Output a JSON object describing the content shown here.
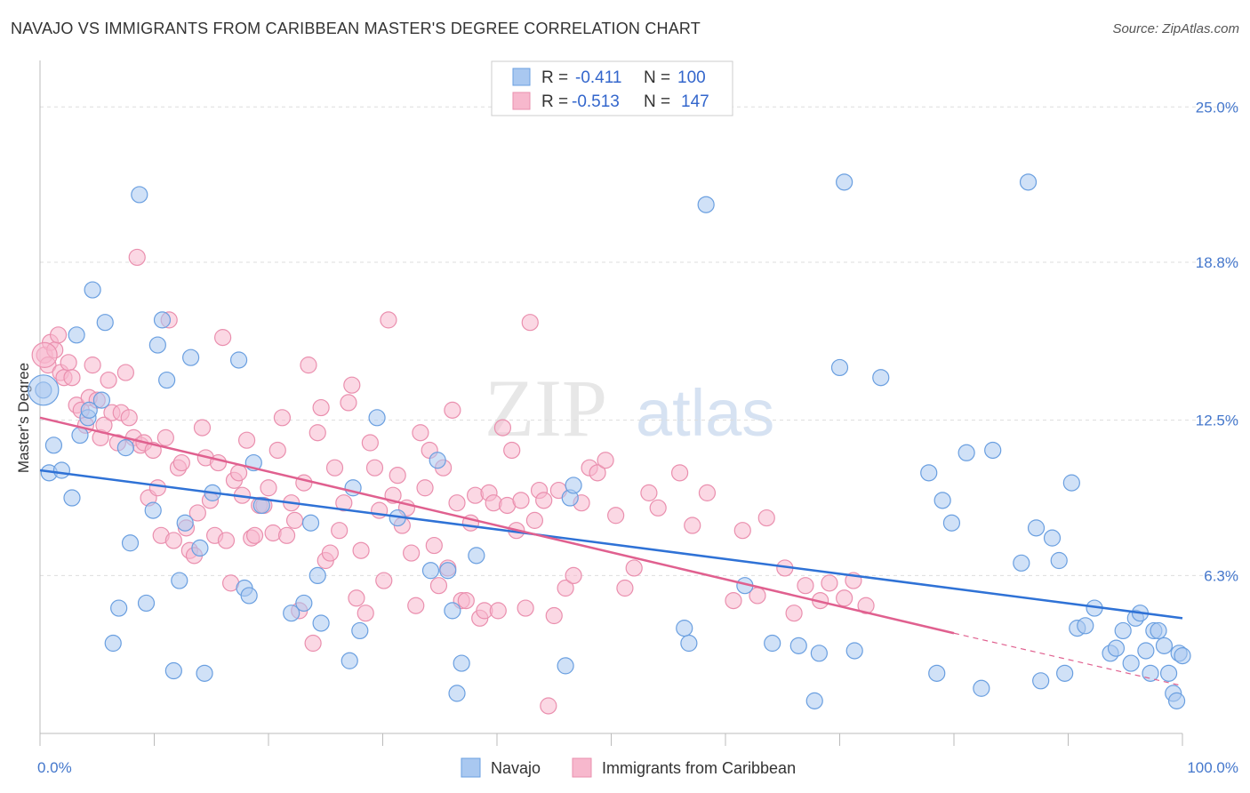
{
  "title": "NAVAJO VS IMMIGRANTS FROM CARIBBEAN MASTER'S DEGREE CORRELATION CHART",
  "source": "Source: ZipAtlas.com",
  "watermark": {
    "zip": "ZIP",
    "atlas": "atlas"
  },
  "colors": {
    "navajo_fill": "#a9c8f0",
    "navajo_stroke": "#6a9fe0",
    "navajo_line": "#2f72d6",
    "carib_fill": "#f7b8cd",
    "carib_stroke": "#ea8fae",
    "carib_line": "#e0608f",
    "grid": "#dddddd",
    "axis_text": "#4477cc"
  },
  "legend": {
    "rows": [
      {
        "r_label": "R =",
        "r_value": "-0.411",
        "n_label": "N =",
        "n_value": "100"
      },
      {
        "r_label": "R =",
        "r_value": "-0.513",
        "n_label": "N =",
        "n_value": "147"
      }
    ]
  },
  "chart_data": {
    "type": "scatter",
    "title": "NAVAJO VS IMMIGRANTS FROM CARIBBEAN MASTER'S DEGREE CORRELATION CHART",
    "xlabel": "",
    "ylabel": "Master's Degree",
    "xlim": [
      0,
      100
    ],
    "ylim": [
      0,
      26.5
    ],
    "x_tick_labels": [
      "0.0%",
      "100.0%"
    ],
    "y_ticks": [
      6.3,
      12.5,
      18.8,
      25.0
    ],
    "y_tick_labels": [
      "6.3%",
      "12.5%",
      "18.8%",
      "25.0%"
    ],
    "grid": true,
    "legend_position": "top-center",
    "series": [
      {
        "name": "Navajo",
        "R": -0.411,
        "N": 100,
        "trend": {
          "x0": 0,
          "y0": 10.5,
          "x1": 100,
          "y1": 4.6
        },
        "points": [
          [
            0.3,
            13.7
          ],
          [
            0.8,
            10.4
          ],
          [
            1.2,
            11.5
          ],
          [
            1.9,
            10.5
          ],
          [
            2.8,
            9.4
          ],
          [
            3.2,
            15.9
          ],
          [
            3.5,
            11.9
          ],
          [
            4.2,
            12.6
          ],
          [
            4.3,
            12.9
          ],
          [
            4.6,
            17.7
          ],
          [
            5.4,
            13.3
          ],
          [
            5.7,
            16.4
          ],
          [
            6.4,
            3.6
          ],
          [
            6.9,
            5.0
          ],
          [
            7.5,
            11.4
          ],
          [
            7.9,
            7.6
          ],
          [
            8.7,
            21.5
          ],
          [
            9.3,
            5.2
          ],
          [
            9.9,
            8.9
          ],
          [
            10.3,
            15.5
          ],
          [
            10.7,
            16.5
          ],
          [
            11.1,
            14.1
          ],
          [
            11.7,
            2.5
          ],
          [
            12.2,
            6.1
          ],
          [
            12.7,
            8.4
          ],
          [
            13.2,
            15.0
          ],
          [
            14.0,
            7.4
          ],
          [
            14.4,
            2.4
          ],
          [
            15.1,
            9.6
          ],
          [
            17.4,
            14.9
          ],
          [
            17.9,
            5.8
          ],
          [
            18.3,
            5.5
          ],
          [
            18.7,
            10.8
          ],
          [
            19.4,
            9.1
          ],
          [
            22.0,
            4.8
          ],
          [
            23.1,
            5.2
          ],
          [
            23.7,
            8.4
          ],
          [
            24.3,
            6.3
          ],
          [
            24.6,
            4.4
          ],
          [
            27.1,
            2.9
          ],
          [
            27.4,
            9.8
          ],
          [
            28.0,
            4.1
          ],
          [
            29.5,
            12.6
          ],
          [
            31.3,
            8.6
          ],
          [
            34.2,
            6.5
          ],
          [
            34.8,
            10.9
          ],
          [
            35.7,
            6.5
          ],
          [
            36.1,
            4.9
          ],
          [
            36.5,
            1.6
          ],
          [
            36.9,
            2.8
          ],
          [
            38.2,
            7.1
          ],
          [
            46.0,
            2.7
          ],
          [
            46.4,
            9.4
          ],
          [
            46.7,
            9.9
          ],
          [
            56.8,
            3.6
          ],
          [
            56.4,
            4.2
          ],
          [
            58.3,
            21.1
          ],
          [
            61.7,
            5.9
          ],
          [
            64.1,
            3.6
          ],
          [
            66.4,
            3.5
          ],
          [
            67.8,
            1.3
          ],
          [
            68.2,
            3.2
          ],
          [
            70.0,
            14.6
          ],
          [
            70.4,
            22.0
          ],
          [
            71.3,
            3.3
          ],
          [
            73.6,
            14.2
          ],
          [
            77.8,
            10.4
          ],
          [
            78.5,
            2.4
          ],
          [
            79.0,
            9.3
          ],
          [
            79.8,
            8.4
          ],
          [
            81.1,
            11.2
          ],
          [
            82.4,
            1.8
          ],
          [
            83.4,
            11.3
          ],
          [
            85.9,
            6.8
          ],
          [
            86.5,
            22.0
          ],
          [
            87.2,
            8.2
          ],
          [
            87.6,
            2.1
          ],
          [
            88.6,
            7.8
          ],
          [
            89.2,
            6.9
          ],
          [
            89.7,
            2.4
          ],
          [
            90.3,
            10.0
          ],
          [
            90.8,
            4.2
          ],
          [
            91.5,
            4.3
          ],
          [
            92.3,
            5.0
          ],
          [
            93.7,
            3.2
          ],
          [
            94.2,
            3.4
          ],
          [
            94.8,
            4.1
          ],
          [
            95.5,
            2.8
          ],
          [
            95.9,
            4.6
          ],
          [
            96.3,
            4.8
          ],
          [
            96.8,
            3.3
          ],
          [
            97.5,
            4.1
          ],
          [
            97.9,
            4.1
          ],
          [
            98.4,
            3.5
          ],
          [
            98.8,
            2.4
          ],
          [
            99.2,
            1.6
          ],
          [
            99.7,
            3.2
          ],
          [
            100.0,
            3.1
          ],
          [
            99.5,
            1.3
          ],
          [
            97.2,
            2.4
          ]
        ]
      },
      {
        "name": "Immigrants from Caribbean",
        "R": -0.513,
        "N": 147,
        "trend": {
          "x0": 0,
          "y0": 12.6,
          "x1": 80,
          "y1": 4.0,
          "dash_x1": 100,
          "dash_y1": 1.9
        },
        "points": [
          [
            0.4,
            15.1
          ],
          [
            0.7,
            14.7
          ],
          [
            0.9,
            15.6
          ],
          [
            1.3,
            15.3
          ],
          [
            1.6,
            15.9
          ],
          [
            1.8,
            14.4
          ],
          [
            2.1,
            14.2
          ],
          [
            2.5,
            14.8
          ],
          [
            2.8,
            14.2
          ],
          [
            3.2,
            13.1
          ],
          [
            3.6,
            12.9
          ],
          [
            4.0,
            12.3
          ],
          [
            4.3,
            13.4
          ],
          [
            4.6,
            14.7
          ],
          [
            5.0,
            13.3
          ],
          [
            5.3,
            11.8
          ],
          [
            5.6,
            12.3
          ],
          [
            6.0,
            14.1
          ],
          [
            6.3,
            12.8
          ],
          [
            6.8,
            11.6
          ],
          [
            7.1,
            12.8
          ],
          [
            7.5,
            14.4
          ],
          [
            7.8,
            12.6
          ],
          [
            8.2,
            11.8
          ],
          [
            8.5,
            19.0
          ],
          [
            8.8,
            11.5
          ],
          [
            9.1,
            11.6
          ],
          [
            9.5,
            9.4
          ],
          [
            9.9,
            11.3
          ],
          [
            10.3,
            9.8
          ],
          [
            10.6,
            7.9
          ],
          [
            11.0,
            11.8
          ],
          [
            11.3,
            16.5
          ],
          [
            11.7,
            7.7
          ],
          [
            12.1,
            10.6
          ],
          [
            12.4,
            10.8
          ],
          [
            12.8,
            8.2
          ],
          [
            13.1,
            7.3
          ],
          [
            13.5,
            7.1
          ],
          [
            13.8,
            8.8
          ],
          [
            14.2,
            12.2
          ],
          [
            14.5,
            11.0
          ],
          [
            14.9,
            9.3
          ],
          [
            15.3,
            7.9
          ],
          [
            15.6,
            10.8
          ],
          [
            16.0,
            15.8
          ],
          [
            16.3,
            7.7
          ],
          [
            16.7,
            6.0
          ],
          [
            17.0,
            10.1
          ],
          [
            17.4,
            10.4
          ],
          [
            17.7,
            9.5
          ],
          [
            18.1,
            11.7
          ],
          [
            18.5,
            7.8
          ],
          [
            18.8,
            7.9
          ],
          [
            19.2,
            9.1
          ],
          [
            19.6,
            9.1
          ],
          [
            20.0,
            9.8
          ],
          [
            20.4,
            8.0
          ],
          [
            20.8,
            11.3
          ],
          [
            21.2,
            12.6
          ],
          [
            21.6,
            7.9
          ],
          [
            22.0,
            9.2
          ],
          [
            22.3,
            8.5
          ],
          [
            22.7,
            4.9
          ],
          [
            23.1,
            10.0
          ],
          [
            23.5,
            14.7
          ],
          [
            23.9,
            3.6
          ],
          [
            24.3,
            12.0
          ],
          [
            24.6,
            13.0
          ],
          [
            25.0,
            6.9
          ],
          [
            25.4,
            7.2
          ],
          [
            25.8,
            10.6
          ],
          [
            26.2,
            8.1
          ],
          [
            26.6,
            9.2
          ],
          [
            27.0,
            13.2
          ],
          [
            27.3,
            13.9
          ],
          [
            27.7,
            5.4
          ],
          [
            28.1,
            7.3
          ],
          [
            28.5,
            4.8
          ],
          [
            28.9,
            11.6
          ],
          [
            29.3,
            10.6
          ],
          [
            29.7,
            8.9
          ],
          [
            30.1,
            6.1
          ],
          [
            30.5,
            16.5
          ],
          [
            30.9,
            9.5
          ],
          [
            31.3,
            10.3
          ],
          [
            31.7,
            8.3
          ],
          [
            32.1,
            9.0
          ],
          [
            32.5,
            7.2
          ],
          [
            32.9,
            5.1
          ],
          [
            33.3,
            12.0
          ],
          [
            33.7,
            9.8
          ],
          [
            34.1,
            11.3
          ],
          [
            34.5,
            7.5
          ],
          [
            34.9,
            5.9
          ],
          [
            35.3,
            10.6
          ],
          [
            35.7,
            6.6
          ],
          [
            36.1,
            12.9
          ],
          [
            36.5,
            9.2
          ],
          [
            36.9,
            5.3
          ],
          [
            37.3,
            5.3
          ],
          [
            37.7,
            8.4
          ],
          [
            38.1,
            9.5
          ],
          [
            38.5,
            4.6
          ],
          [
            38.9,
            4.9
          ],
          [
            39.3,
            9.6
          ],
          [
            39.7,
            9.2
          ],
          [
            40.1,
            4.9
          ],
          [
            40.5,
            12.2
          ],
          [
            40.9,
            9.1
          ],
          [
            41.3,
            11.3
          ],
          [
            41.7,
            8.1
          ],
          [
            42.1,
            9.3
          ],
          [
            42.5,
            5.0
          ],
          [
            42.9,
            16.4
          ],
          [
            43.3,
            8.5
          ],
          [
            43.7,
            9.7
          ],
          [
            44.1,
            9.3
          ],
          [
            44.5,
            1.1
          ],
          [
            45.0,
            4.7
          ],
          [
            45.4,
            9.7
          ],
          [
            46.0,
            5.8
          ],
          [
            46.7,
            6.3
          ],
          [
            47.4,
            9.2
          ],
          [
            48.1,
            10.6
          ],
          [
            48.8,
            10.4
          ],
          [
            49.5,
            10.9
          ],
          [
            50.4,
            8.7
          ],
          [
            51.2,
            5.8
          ],
          [
            52.0,
            6.6
          ],
          [
            53.3,
            9.6
          ],
          [
            54.1,
            9.0
          ],
          [
            56.0,
            10.4
          ],
          [
            57.1,
            8.3
          ],
          [
            58.4,
            9.6
          ],
          [
            60.7,
            5.3
          ],
          [
            61.5,
            8.1
          ],
          [
            62.8,
            5.5
          ],
          [
            63.6,
            8.6
          ],
          [
            65.2,
            6.6
          ],
          [
            66.0,
            4.8
          ],
          [
            67.0,
            5.9
          ],
          [
            68.3,
            5.3
          ],
          [
            69.1,
            6.0
          ],
          [
            70.4,
            5.4
          ],
          [
            71.2,
            6.1
          ],
          [
            72.3,
            5.1
          ]
        ]
      }
    ]
  }
}
